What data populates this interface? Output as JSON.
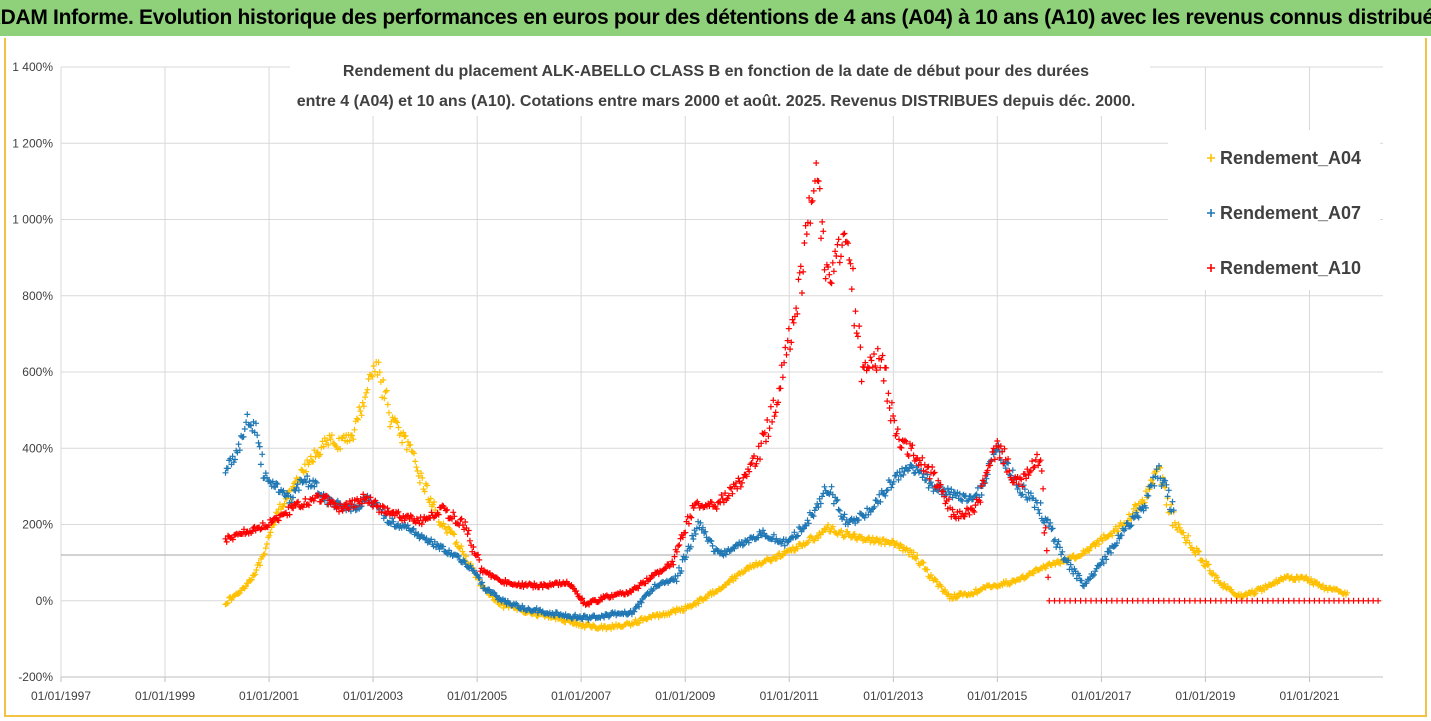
{
  "banner": {
    "title": "ADAM Informe. Evolution historique des performances en euros pour des détentions de 4 ans (A04) à 10 ans (A10) avec les revenus connus distribués"
  },
  "chart_data": {
    "type": "scatter",
    "title_line1": "Rendement du placement ALK-ABELLO  CLASS B en fonction de la date de début pour des durées",
    "title_line2": "entre 4 (A04) et 10 ans (A10). Cotations entre mars 2000 et août. 2025. Revenus DISTRIBUES depuis déc. 2000.",
    "xlabel": "",
    "ylabel": "",
    "x_axis": {
      "type": "date",
      "range": [
        "1997-01-01",
        "2022-06-01"
      ],
      "tick_labels": [
        "01/01/1997",
        "01/01/1999",
        "01/01/2001",
        "01/01/2003",
        "01/01/2005",
        "01/01/2007",
        "01/01/2009",
        "01/01/2011",
        "01/01/2013",
        "01/01/2015",
        "01/01/2017",
        "01/01/2019",
        "01/01/2021"
      ]
    },
    "y_axis": {
      "unit": "%",
      "range": [
        -200,
        1400
      ],
      "tick_values": [
        -200,
        0,
        200,
        400,
        600,
        800,
        1000,
        1200,
        1400
      ],
      "tick_labels": [
        "-200%",
        "0%",
        "200%",
        "400%",
        "600%",
        "800%",
        "1 000%",
        "1 200%",
        "1 400%"
      ]
    },
    "grid": "horizontal",
    "reference_line": 120,
    "legend": "right",
    "series": [
      {
        "name": "Rendement_A04",
        "color": "#ffc000",
        "marker": "+",
        "points": [
          [
            "2000-03-01",
            -5
          ],
          [
            "2000-06-01",
            20
          ],
          [
            "2000-09-01",
            60
          ],
          [
            "2000-12-01",
            120
          ],
          [
            "2001-03-01",
            240
          ],
          [
            "2001-06-01",
            280
          ],
          [
            "2001-09-01",
            340
          ],
          [
            "2001-12-01",
            390
          ],
          [
            "2002-03-01",
            420
          ],
          [
            "2002-06-01",
            410
          ],
          [
            "2002-09-01",
            450
          ],
          [
            "2002-12-01",
            580
          ],
          [
            "2003-02-01",
            620
          ],
          [
            "2003-05-01",
            480
          ],
          [
            "2003-08-01",
            430
          ],
          [
            "2003-11-01",
            350
          ],
          [
            "2004-02-01",
            270
          ],
          [
            "2004-05-01",
            200
          ],
          [
            "2004-08-01",
            160
          ],
          [
            "2004-11-01",
            100
          ],
          [
            "2005-02-01",
            40
          ],
          [
            "2005-06-01",
            -10
          ],
          [
            "2005-10-01",
            -20
          ],
          [
            "2006-03-01",
            -35
          ],
          [
            "2006-08-01",
            -45
          ],
          [
            "2007-01-01",
            -65
          ],
          [
            "2007-06-01",
            -70
          ],
          [
            "2007-11-01",
            -65
          ],
          [
            "2008-03-01",
            -50
          ],
          [
            "2008-08-01",
            -35
          ],
          [
            "2009-01-01",
            -20
          ],
          [
            "2009-06-01",
            10
          ],
          [
            "2009-11-01",
            50
          ],
          [
            "2010-04-01",
            90
          ],
          [
            "2010-09-01",
            110
          ],
          [
            "2011-01-01",
            130
          ],
          [
            "2011-06-01",
            160
          ],
          [
            "2011-10-01",
            190
          ],
          [
            "2012-03-01",
            170
          ],
          [
            "2012-08-01",
            160
          ],
          [
            "2013-01-01",
            150
          ],
          [
            "2013-06-01",
            120
          ],
          [
            "2013-10-01",
            60
          ],
          [
            "2014-02-01",
            10
          ],
          [
            "2014-07-01",
            20
          ],
          [
            "2014-12-01",
            40
          ],
          [
            "2015-05-01",
            50
          ],
          [
            "2015-10-01",
            80
          ],
          [
            "2016-03-01",
            100
          ],
          [
            "2016-08-01",
            120
          ],
          [
            "2017-01-01",
            160
          ],
          [
            "2017-06-01",
            200
          ],
          [
            "2017-11-01",
            270
          ],
          [
            "2018-02-01",
            350
          ],
          [
            "2018-06-01",
            200
          ],
          [
            "2018-11-01",
            130
          ],
          [
            "2019-04-01",
            50
          ],
          [
            "2019-09-01",
            10
          ],
          [
            "2020-02-01",
            30
          ],
          [
            "2020-07-01",
            60
          ],
          [
            "2020-12-01",
            60
          ],
          [
            "2021-05-01",
            30
          ],
          [
            "2021-10-01",
            20
          ]
        ]
      },
      {
        "name": "Rendement_A07",
        "color": "#1f77b4",
        "marker": "+",
        "points": [
          [
            "2000-03-01",
            340
          ],
          [
            "2000-06-01",
            400
          ],
          [
            "2000-08-01",
            480
          ],
          [
            "2000-10-01",
            440
          ],
          [
            "2000-12-01",
            330
          ],
          [
            "2001-03-01",
            300
          ],
          [
            "2001-06-01",
            260
          ],
          [
            "2001-09-01",
            320
          ],
          [
            "2001-12-01",
            300
          ],
          [
            "2002-03-01",
            260
          ],
          [
            "2002-06-01",
            250
          ],
          [
            "2002-09-01",
            240
          ],
          [
            "2002-12-01",
            270
          ],
          [
            "2003-03-01",
            230
          ],
          [
            "2003-06-01",
            200
          ],
          [
            "2003-09-01",
            190
          ],
          [
            "2003-12-01",
            170
          ],
          [
            "2004-03-01",
            150
          ],
          [
            "2004-06-01",
            130
          ],
          [
            "2004-09-01",
            110
          ],
          [
            "2004-12-01",
            80
          ],
          [
            "2005-03-01",
            30
          ],
          [
            "2005-07-01",
            0
          ],
          [
            "2005-12-01",
            -20
          ],
          [
            "2006-05-01",
            -30
          ],
          [
            "2006-10-01",
            -40
          ],
          [
            "2007-03-01",
            -45
          ],
          [
            "2007-08-01",
            -35
          ],
          [
            "2008-01-01",
            -30
          ],
          [
            "2008-06-01",
            40
          ],
          [
            "2008-11-01",
            60
          ],
          [
            "2009-04-01",
            200
          ],
          [
            "2009-09-01",
            120
          ],
          [
            "2010-02-01",
            150
          ],
          [
            "2010-07-01",
            180
          ],
          [
            "2010-12-01",
            150
          ],
          [
            "2011-05-01",
            200
          ],
          [
            "2011-10-01",
            300
          ],
          [
            "2012-02-01",
            200
          ],
          [
            "2012-07-01",
            230
          ],
          [
            "2012-12-01",
            300
          ],
          [
            "2013-05-01",
            360
          ],
          [
            "2013-10-01",
            300
          ],
          [
            "2014-03-01",
            280
          ],
          [
            "2014-08-01",
            260
          ],
          [
            "2015-01-01",
            400
          ],
          [
            "2015-06-01",
            300
          ],
          [
            "2015-11-01",
            240
          ],
          [
            "2016-04-01",
            120
          ],
          [
            "2016-09-01",
            40
          ],
          [
            "2017-01-01",
            100
          ],
          [
            "2017-06-01",
            180
          ],
          [
            "2017-11-01",
            250
          ],
          [
            "2018-02-01",
            340
          ],
          [
            "2018-06-01",
            230
          ]
        ]
      },
      {
        "name": "Rendement_A10",
        "color": "#ff0000",
        "marker": "+",
        "points": [
          [
            "2000-03-01",
            160
          ],
          [
            "2000-07-01",
            180
          ],
          [
            "2000-11-01",
            190
          ],
          [
            "2001-03-01",
            220
          ],
          [
            "2001-08-01",
            250
          ],
          [
            "2002-01-01",
            270
          ],
          [
            "2002-06-01",
            240
          ],
          [
            "2002-11-01",
            270
          ],
          [
            "2003-03-01",
            240
          ],
          [
            "2003-08-01",
            220
          ],
          [
            "2003-12-01",
            210
          ],
          [
            "2004-05-01",
            240
          ],
          [
            "2004-10-01",
            200
          ],
          [
            "2005-02-01",
            80
          ],
          [
            "2005-07-01",
            50
          ],
          [
            "2005-12-01",
            40
          ],
          [
            "2006-05-01",
            40
          ],
          [
            "2006-10-01",
            50
          ],
          [
            "2007-02-01",
            -10
          ],
          [
            "2007-07-01",
            10
          ],
          [
            "2007-12-01",
            20
          ],
          [
            "2008-05-01",
            60
          ],
          [
            "2008-10-01",
            100
          ],
          [
            "2009-03-01",
            250
          ],
          [
            "2009-08-01",
            250
          ],
          [
            "2010-01-01",
            300
          ],
          [
            "2010-06-01",
            380
          ],
          [
            "2010-11-01",
            560
          ],
          [
            "2011-04-01",
            860
          ],
          [
            "2011-07-01",
            1140
          ],
          [
            "2011-10-01",
            840
          ],
          [
            "2012-02-01",
            960
          ],
          [
            "2012-06-01",
            600
          ],
          [
            "2012-10-01",
            640
          ],
          [
            "2013-02-01",
            430
          ],
          [
            "2013-06-01",
            380
          ],
          [
            "2013-10-01",
            330
          ],
          [
            "2014-03-01",
            220
          ],
          [
            "2014-08-01",
            240
          ],
          [
            "2015-01-01",
            410
          ],
          [
            "2015-06-01",
            300
          ],
          [
            "2015-11-01",
            380
          ],
          [
            "2016-01-01",
            0
          ],
          [
            "2017-01-01",
            0
          ],
          [
            "2018-01-01",
            0
          ],
          [
            "2019-01-01",
            0
          ],
          [
            "2020-01-01",
            0
          ],
          [
            "2021-01-01",
            0
          ],
          [
            "2022-06-01",
            0
          ]
        ]
      }
    ]
  }
}
